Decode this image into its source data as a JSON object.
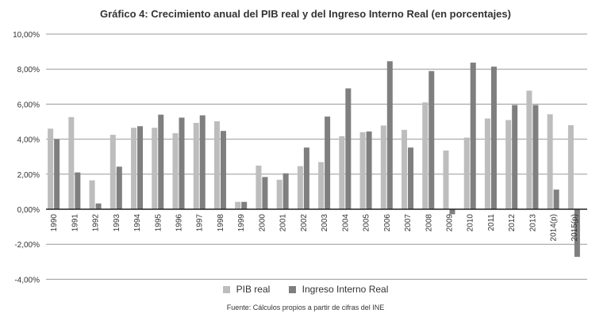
{
  "chart_data": {
    "type": "bar",
    "title": "Gráfico 4: Crecimiento anual del PIB real y del Ingreso Interno Real (en porcentajes)",
    "source": "Fuente: Cálculos propios a partir de cifras del INE",
    "categories": [
      "1990",
      "1991",
      "1992",
      "1993",
      "1994",
      "1995",
      "1996",
      "1997",
      "1998",
      "1999",
      "2000",
      "2001",
      "2002",
      "2003",
      "2004",
      "2005",
      "2006",
      "2007",
      "2008",
      "2009",
      "2010",
      "2011",
      "2012",
      "2013",
      "2014(p)",
      "2015(p)"
    ],
    "series": [
      {
        "name": "PIB real",
        "color": "#bdbdbd",
        "values": [
          4.6,
          5.26,
          1.65,
          4.25,
          4.65,
          4.65,
          4.34,
          4.93,
          5.02,
          0.42,
          2.49,
          1.68,
          2.46,
          2.69,
          4.17,
          4.4,
          4.78,
          4.53,
          6.1,
          3.35,
          4.09,
          5.18,
          5.09,
          6.77,
          5.42,
          4.8
        ]
      },
      {
        "name": "Ingreso Interno Real",
        "color": "#7f7f7f",
        "values": [
          4.0,
          2.1,
          0.33,
          2.43,
          4.74,
          5.4,
          5.23,
          5.36,
          4.47,
          0.42,
          1.84,
          2.05,
          3.52,
          5.29,
          6.9,
          4.44,
          8.45,
          3.52,
          7.89,
          -0.29,
          8.37,
          8.14,
          5.95,
          5.95,
          1.12,
          -2.72
        ]
      }
    ],
    "ylim": [
      -4,
      10
    ],
    "yticks": [
      -4,
      -2,
      0,
      2,
      4,
      6,
      8,
      10
    ],
    "ytick_labels": [
      "-4,00%",
      "-2,00%",
      "0,00%",
      "2,00%",
      "4,00%",
      "6,00%",
      "8,00%",
      "10,00%"
    ],
    "grid": true,
    "legend": "bottom"
  }
}
